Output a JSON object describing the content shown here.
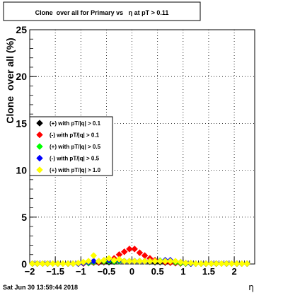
{
  "chart_data": {
    "type": "scatter",
    "title": "Clone  over all for Primary vs   η at pT > 0.11",
    "xlabel": "η",
    "ylabel": "Clone  over all (%)",
    "xlim": [
      -2,
      2.4
    ],
    "ylim": [
      0,
      25
    ],
    "x_ticks": [
      "−2",
      "−1.5",
      "−1",
      "−0.5",
      "0",
      "0.5",
      "1",
      "1.5",
      "2"
    ],
    "y_ticks": [
      "0",
      "5",
      "10",
      "15",
      "20",
      "25"
    ],
    "grid": true,
    "legend_position": "middle-left",
    "footer": "Sat Jun 30 13:59:44 2018",
    "series": [
      {
        "name": "(+) with pT/|q| > 0.1",
        "color": "#000000",
        "x": [
          -1.95,
          -1.85,
          -1.75,
          -1.65,
          -1.55,
          -1.45,
          -1.35,
          -1.25,
          -1.15,
          -1.05,
          -0.95,
          -0.85,
          -0.75,
          -0.65,
          -0.55,
          -0.45,
          -0.35,
          -0.25,
          -0.15,
          -0.05,
          0.05,
          0.15,
          0.25,
          0.35,
          0.45,
          0.55,
          0.65,
          0.75,
          0.85,
          0.95,
          1.05,
          1.15,
          1.25,
          1.35,
          1.45,
          1.55,
          1.65,
          1.75,
          1.85,
          1.95,
          2.05,
          2.15,
          2.25
        ],
        "y": [
          0,
          0,
          0,
          0,
          0,
          0,
          0,
          0,
          0,
          0.05,
          0.1,
          0.1,
          0.15,
          0.15,
          0.2,
          0.2,
          0.25,
          0.3,
          0.3,
          0.3,
          0.3,
          0.3,
          0.3,
          0.25,
          0.2,
          0.2,
          0.15,
          0.15,
          0.1,
          0.1,
          0.05,
          0,
          0,
          0,
          0,
          0,
          0,
          0,
          0,
          0,
          0,
          0,
          0
        ]
      },
      {
        "name": "(-) with pT/|q| > 0.1",
        "color": "#ff0000",
        "x": [
          -1.95,
          -1.85,
          -1.75,
          -1.65,
          -1.55,
          -1.45,
          -1.35,
          -1.25,
          -1.15,
          -1.05,
          -0.95,
          -0.85,
          -0.75,
          -0.65,
          -0.55,
          -0.45,
          -0.35,
          -0.25,
          -0.15,
          -0.05,
          0.05,
          0.15,
          0.25,
          0.35,
          0.45,
          0.55,
          0.65,
          0.75,
          0.85,
          0.95,
          1.05,
          1.15,
          1.25,
          1.35,
          1.45,
          1.55,
          1.65,
          1.75,
          1.85,
          1.95,
          2.05,
          2.15,
          2.25
        ],
        "y": [
          0,
          0,
          0,
          0,
          0,
          0,
          0,
          0,
          0,
          0,
          0.05,
          0.1,
          0.15,
          0.2,
          0.25,
          0.4,
          0.6,
          1.0,
          1.3,
          1.6,
          1.6,
          1.2,
          0.9,
          0.6,
          0.4,
          0.3,
          0.2,
          0.15,
          0.1,
          0.05,
          0,
          0,
          0,
          0,
          0,
          0,
          0,
          0,
          0,
          0,
          0,
          0,
          0
        ]
      },
      {
        "name": "(+) with pT/|q| > 0.5",
        "color": "#00ff00",
        "x": [
          -1.95,
          -1.85,
          -1.75,
          -1.65,
          -1.55,
          -1.45,
          -1.35,
          -1.25,
          -1.15,
          -1.05,
          -0.95,
          -0.85,
          -0.75,
          -0.65,
          -0.55,
          -0.45,
          -0.35,
          -0.25,
          -0.15,
          -0.05,
          0.05,
          0.15,
          0.25,
          0.35,
          0.45,
          0.55,
          0.65,
          0.75,
          0.85,
          0.95,
          1.05,
          1.15,
          1.25,
          1.35,
          1.45,
          1.55,
          1.65,
          1.75,
          1.85,
          1.95,
          2.05,
          2.15,
          2.25
        ],
        "y": [
          0,
          0,
          0,
          0,
          0,
          0,
          0,
          0,
          0,
          0.05,
          0.1,
          0.1,
          0.2,
          0.3,
          0.3,
          0.3,
          0.3,
          0.3,
          0.3,
          0.3,
          0.3,
          0.3,
          0.3,
          0.3,
          0.3,
          0.35,
          0.35,
          0.35,
          0.2,
          0.1,
          0.05,
          0,
          0,
          0,
          0,
          0,
          0,
          0,
          0,
          0,
          0,
          0,
          0
        ]
      },
      {
        "name": "(-) with pT/|q| > 0.5",
        "color": "#0000ff",
        "x": [
          -1.95,
          -1.85,
          -1.75,
          -1.65,
          -1.55,
          -1.45,
          -1.35,
          -1.25,
          -1.15,
          -1.05,
          -0.95,
          -0.85,
          -0.75,
          -0.65,
          -0.55,
          -0.45,
          -0.35,
          -0.25,
          -0.15,
          -0.05,
          0.05,
          0.15,
          0.25,
          0.35,
          0.45,
          0.55,
          0.65,
          0.75,
          0.85,
          0.95,
          1.05,
          1.15,
          1.25,
          1.35,
          1.45,
          1.55,
          1.65,
          1.75,
          1.85,
          1.95,
          2.05,
          2.15,
          2.25
        ],
        "y": [
          0,
          0,
          0,
          0,
          0,
          0,
          0,
          0,
          0,
          0,
          0.1,
          0.2,
          0.3,
          0.3,
          0.4,
          0.4,
          0.4,
          0.4,
          0.3,
          0.3,
          0.3,
          0.3,
          0.3,
          0.3,
          0.3,
          0.3,
          0.4,
          0.4,
          0.3,
          0.2,
          0.1,
          0,
          0,
          0,
          0,
          0,
          0,
          0,
          0,
          0,
          0,
          0,
          0
        ]
      },
      {
        "name": "(+) with pT/|q| > 1.0",
        "color": "#ffff00",
        "x": [
          -1.95,
          -1.85,
          -1.75,
          -1.65,
          -1.55,
          -1.45,
          -1.35,
          -1.25,
          -1.15,
          -1.05,
          -0.95,
          -0.85,
          -0.75,
          -0.65,
          -0.55,
          -0.45,
          -0.35,
          -0.25,
          -0.15,
          -0.05,
          0.05,
          0.15,
          0.25,
          0.35,
          0.45,
          0.55,
          0.65,
          0.75,
          0.85,
          0.95,
          1.05,
          1.15,
          1.25,
          1.35,
          1.45,
          1.55,
          1.65,
          1.75,
          1.85,
          1.95,
          2.05,
          2.15,
          2.25
        ],
        "y": [
          0,
          0,
          0,
          0,
          0,
          0,
          0,
          0,
          0,
          0.1,
          0.2,
          0.3,
          0.9,
          0.3,
          0.4,
          0.6,
          0.4,
          0.5,
          0.3,
          0.3,
          0.3,
          0.3,
          0.3,
          0.3,
          0.3,
          0.3,
          0.3,
          0.3,
          0.3,
          0.2,
          0.1,
          0.1,
          0,
          0,
          0,
          0,
          0,
          0,
          0,
          0,
          0,
          0,
          0
        ]
      }
    ]
  }
}
